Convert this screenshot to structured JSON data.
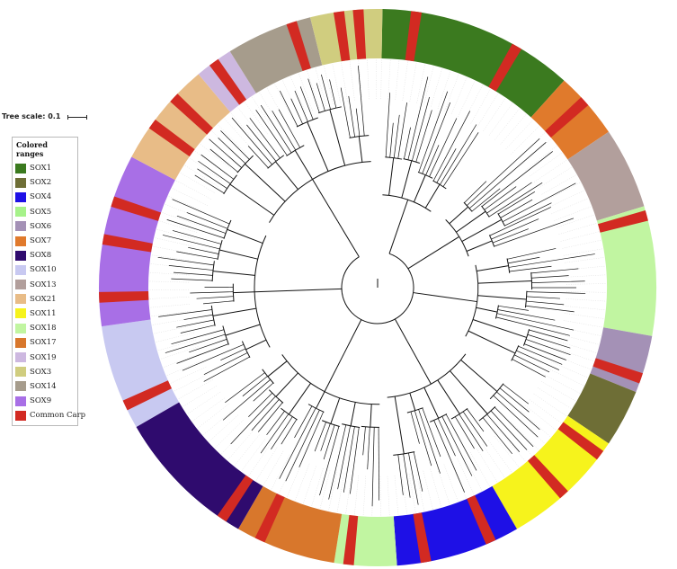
{
  "tree_scale": {
    "label": "Tree scale: 0.1"
  },
  "legend": {
    "title": "Colored ranges",
    "items": [
      {
        "label": "SOX1",
        "color": "#3b7a1f"
      },
      {
        "label": "SOX2",
        "color": "#6e6e36"
      },
      {
        "label": "SOX4",
        "color": "#1e10e6"
      },
      {
        "label": "SOX5",
        "color": "#a6f28a"
      },
      {
        "label": "SOX6",
        "color": "#a491b6"
      },
      {
        "label": "SOX7",
        "color": "#e07a2c"
      },
      {
        "label": "SOX8",
        "color": "#2f0b6e"
      },
      {
        "label": "SOX10",
        "color": "#c8c9f1"
      },
      {
        "label": "SOX13",
        "color": "#b29f9c"
      },
      {
        "label": "SOX21",
        "color": "#e8bc87"
      },
      {
        "label": "SOX11",
        "color": "#f6f31c"
      },
      {
        "label": "SOX18",
        "color": "#c1f5a1"
      },
      {
        "label": "SOX17",
        "color": "#d8772c"
      },
      {
        "label": "SOX19",
        "color": "#cdb8e0"
      },
      {
        "label": "SOX3",
        "color": "#d0cd7f"
      },
      {
        "label": "SOX14",
        "color": "#a69c8c"
      },
      {
        "label": "SOX9",
        "color": "#a86fe6"
      },
      {
        "label": "Common Carp",
        "color": "#d22a22"
      }
    ]
  },
  "ring_sectors": [
    {
      "clade": "SOX1",
      "color": "#3b7a1f",
      "start": 1,
      "end": 42
    },
    {
      "clade": "SOX7",
      "color": "#e07a2c",
      "start": 42,
      "end": 56
    },
    {
      "clade": "SOX13",
      "color": "#b29f9c",
      "start": 56,
      "end": 73
    },
    {
      "clade": "SOX18",
      "color": "#c1f5a1",
      "start": 73,
      "end": 100
    },
    {
      "clade": "SOX6",
      "color": "#a491b6",
      "start": 100,
      "end": 112
    },
    {
      "clade": "SOX2",
      "color": "#6e6e36",
      "start": 112,
      "end": 124
    },
    {
      "clade": "SOX11",
      "color": "#f6f31c",
      "start": 124,
      "end": 150
    },
    {
      "clade": "SOX4",
      "color": "#1e10e6",
      "start": 150,
      "end": 176
    },
    {
      "clade": "SOX18",
      "color": "#c1f5a1",
      "start": 176,
      "end": 189
    },
    {
      "clade": "SOX17",
      "color": "#d8772c",
      "start": 189,
      "end": 210
    },
    {
      "clade": "SOX8",
      "color": "#2f0b6e",
      "start": 210,
      "end": 240
    },
    {
      "clade": "SOX10",
      "color": "#c8c9f1",
      "start": 240,
      "end": 262
    },
    {
      "clade": "SOX9",
      "color": "#a86fe6",
      "start": 262,
      "end": 298
    },
    {
      "clade": "SOX21",
      "color": "#e8bc87",
      "start": 298,
      "end": 320
    },
    {
      "clade": "SOX19",
      "color": "#cdb8e0",
      "start": 320,
      "end": 328
    },
    {
      "clade": "SOX14",
      "color": "#a69c8c",
      "start": 328,
      "end": 346
    },
    {
      "clade": "SOX3",
      "color": "#d0cd7f",
      "start": 346,
      "end": 361
    }
  ],
  "carp_markers": [
    8,
    30,
    48,
    75,
    109,
    127,
    138,
    156,
    170,
    186,
    205,
    214,
    245,
    268,
    280,
    288,
    306,
    313,
    324,
    342,
    352,
    356
  ],
  "tree_clusters": [
    {
      "start": 2,
      "end": 36,
      "depth": 0.78
    },
    {
      "start": 44,
      "end": 72,
      "depth": 0.7
    },
    {
      "start": 76,
      "end": 120,
      "depth": 0.66
    },
    {
      "start": 126,
      "end": 176,
      "depth": 0.82
    },
    {
      "start": 178,
      "end": 236,
      "depth": 0.86
    },
    {
      "start": 240,
      "end": 296,
      "depth": 0.9
    },
    {
      "start": 300,
      "end": 358,
      "depth": 0.82
    }
  ]
}
